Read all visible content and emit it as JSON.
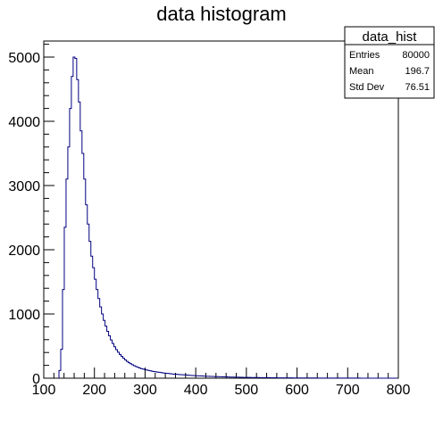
{
  "chart_data": {
    "type": "histogram",
    "title": "data histogram",
    "xlabel": "",
    "ylabel": "",
    "xlim": [
      100,
      800
    ],
    "ylim": [
      0,
      5250
    ],
    "xticks": [
      100,
      200,
      300,
      400,
      500,
      600,
      700,
      800
    ],
    "yticks": [
      0,
      1000,
      2000,
      3000,
      4000,
      5000
    ],
    "bin_width": 3.5,
    "bins": [
      [
        130,
        120
      ],
      [
        133.5,
        450
      ],
      [
        137,
        1380
      ],
      [
        140.5,
        2350
      ],
      [
        144,
        3100
      ],
      [
        147.5,
        3600
      ],
      [
        151,
        4200
      ],
      [
        154.5,
        4700
      ],
      [
        158,
        5000
      ],
      [
        161.5,
        4980
      ],
      [
        165,
        4650
      ],
      [
        168.5,
        4300
      ],
      [
        172,
        3850
      ],
      [
        175.5,
        3500
      ],
      [
        179,
        3100
      ],
      [
        182.5,
        2700
      ],
      [
        186,
        2400
      ],
      [
        189.5,
        2130
      ],
      [
        193,
        1900
      ],
      [
        196.5,
        1720
      ],
      [
        200,
        1540
      ],
      [
        203.5,
        1380
      ],
      [
        207,
        1240
      ],
      [
        210.5,
        1110
      ],
      [
        214,
        1000
      ],
      [
        217.5,
        900
      ],
      [
        221,
        810
      ],
      [
        224.5,
        730
      ],
      [
        228,
        660
      ],
      [
        231.5,
        595
      ],
      [
        235,
        540
      ],
      [
        238.5,
        490
      ],
      [
        242,
        445
      ],
      [
        245.5,
        405
      ],
      [
        249,
        370
      ],
      [
        252.5,
        340
      ],
      [
        256,
        310
      ],
      [
        259.5,
        285
      ],
      [
        263,
        262
      ],
      [
        266.5,
        242
      ],
      [
        270,
        225
      ],
      [
        273.5,
        210
      ],
      [
        277,
        195
      ],
      [
        280.5,
        182
      ],
      [
        284,
        170
      ],
      [
        287.5,
        160
      ],
      [
        291,
        150
      ],
      [
        294.5,
        142
      ],
      [
        298,
        135
      ],
      [
        301.5,
        128
      ],
      [
        305,
        122
      ],
      [
        308.5,
        116
      ],
      [
        312,
        110
      ],
      [
        315.5,
        105
      ],
      [
        319,
        100
      ],
      [
        322.5,
        96
      ],
      [
        326,
        92
      ],
      [
        329.5,
        88
      ],
      [
        333,
        84
      ],
      [
        336.5,
        80
      ],
      [
        340,
        77
      ],
      [
        343.5,
        74
      ],
      [
        347,
        71
      ],
      [
        350.5,
        68
      ],
      [
        354,
        65
      ],
      [
        357.5,
        63
      ],
      [
        361,
        60
      ],
      [
        364.5,
        58
      ],
      [
        368,
        56
      ],
      [
        371.5,
        54
      ],
      [
        375,
        52
      ],
      [
        378.5,
        50
      ],
      [
        382,
        48
      ],
      [
        385.5,
        46
      ],
      [
        389,
        44
      ],
      [
        392.5,
        42
      ],
      [
        396,
        40
      ],
      [
        399.5,
        39
      ],
      [
        403,
        37
      ],
      [
        406.5,
        36
      ],
      [
        410,
        34
      ],
      [
        413.5,
        33
      ],
      [
        417,
        32
      ],
      [
        420.5,
        30
      ],
      [
        424,
        29
      ],
      [
        427.5,
        28
      ],
      [
        431,
        27
      ],
      [
        434.5,
        26
      ],
      [
        438,
        25
      ],
      [
        441.5,
        24
      ],
      [
        445,
        23
      ],
      [
        448.5,
        22
      ],
      [
        452,
        21
      ],
      [
        455.5,
        20
      ],
      [
        459,
        20
      ],
      [
        462.5,
        19
      ],
      [
        466,
        18
      ],
      [
        469.5,
        17
      ],
      [
        473,
        17
      ],
      [
        476.5,
        16
      ],
      [
        480,
        15
      ],
      [
        483.5,
        15
      ],
      [
        487,
        14
      ],
      [
        490.5,
        14
      ],
      [
        494,
        13
      ],
      [
        497.5,
        13
      ],
      [
        501,
        12
      ],
      [
        504.5,
        12
      ],
      [
        508,
        11
      ],
      [
        511.5,
        11
      ],
      [
        515,
        10
      ],
      [
        518.5,
        10
      ],
      [
        522,
        10
      ],
      [
        525.5,
        9
      ],
      [
        529,
        9
      ],
      [
        532.5,
        9
      ],
      [
        536,
        8
      ],
      [
        539.5,
        8
      ],
      [
        543,
        8
      ],
      [
        546.5,
        7
      ],
      [
        550,
        7
      ],
      [
        553.5,
        7
      ],
      [
        557,
        7
      ],
      [
        560.5,
        6
      ],
      [
        564,
        6
      ],
      [
        567.5,
        6
      ],
      [
        571,
        6
      ],
      [
        574.5,
        5
      ],
      [
        578,
        5
      ],
      [
        581.5,
        5
      ],
      [
        585,
        5
      ],
      [
        588.5,
        5
      ],
      [
        592,
        4
      ],
      [
        595.5,
        4
      ],
      [
        599,
        4
      ],
      [
        602.5,
        4
      ],
      [
        606,
        4
      ],
      [
        609.5,
        4
      ],
      [
        613,
        3
      ],
      [
        616.5,
        3
      ],
      [
        620,
        3
      ],
      [
        623.5,
        3
      ],
      [
        627,
        3
      ],
      [
        630.5,
        3
      ],
      [
        634,
        3
      ],
      [
        637.5,
        2
      ],
      [
        641,
        2
      ],
      [
        644.5,
        2
      ],
      [
        648,
        2
      ],
      [
        651.5,
        2
      ],
      [
        655,
        2
      ],
      [
        658.5,
        2
      ],
      [
        662,
        2
      ],
      [
        665.5,
        2
      ],
      [
        669,
        2
      ],
      [
        672.5,
        1
      ],
      [
        676,
        1
      ],
      [
        679.5,
        1
      ],
      [
        683,
        1
      ],
      [
        686.5,
        1
      ],
      [
        690,
        1
      ],
      [
        693.5,
        1
      ],
      [
        697,
        1
      ],
      [
        700.5,
        1
      ],
      [
        704,
        1
      ],
      [
        707.5,
        1
      ],
      [
        711,
        1
      ],
      [
        714.5,
        1
      ],
      [
        718,
        1
      ],
      [
        721.5,
        1
      ],
      [
        725,
        0
      ],
      [
        728.5,
        0
      ],
      [
        732,
        0
      ],
      [
        735.5,
        0
      ],
      [
        739,
        0
      ],
      [
        742.5,
        0
      ],
      [
        746,
        0
      ],
      [
        749.5,
        0
      ],
      [
        753,
        0
      ],
      [
        756.5,
        0
      ],
      [
        760,
        0
      ],
      [
        763.5,
        0
      ],
      [
        767,
        0
      ],
      [
        770.5,
        0
      ],
      [
        774,
        0
      ],
      [
        777.5,
        0
      ],
      [
        781,
        0
      ],
      [
        784.5,
        0
      ],
      [
        788,
        0
      ],
      [
        791.5,
        0
      ],
      [
        795,
        0
      ]
    ],
    "series": [
      {
        "name": "",
        "color": "#000080"
      }
    ],
    "grid": false,
    "stats_box": {
      "title": "data_hist",
      "rows": [
        {
          "label": "Entries",
          "value": "80000"
        },
        {
          "label": "Mean",
          "value": "196.7"
        },
        {
          "label": "Std Dev",
          "value": "76.51"
        }
      ]
    }
  }
}
